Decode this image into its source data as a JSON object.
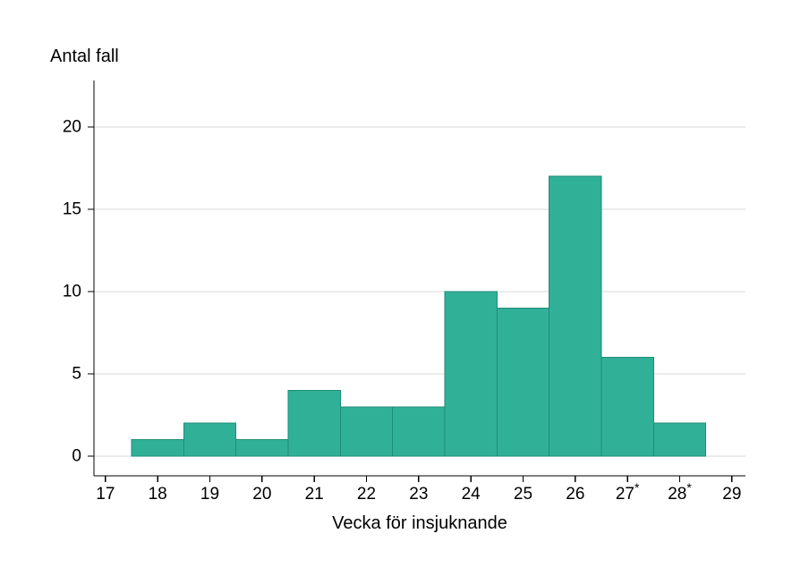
{
  "page": {
    "background": "#ffffff"
  },
  "chart_data": {
    "type": "bar",
    "title": "Antal fall",
    "xlabel": "Vecka för insjuknande",
    "ylabel": "Antal fall",
    "categories": [
      18,
      19,
      20,
      21,
      22,
      23,
      24,
      25,
      26,
      27,
      28
    ],
    "values": [
      1,
      2,
      1,
      4,
      3,
      3,
      10,
      9,
      17,
      6,
      2
    ],
    "bar_half_width": 0.5,
    "x_ticks": [
      {
        "v": 17,
        "label": "17",
        "sup": ""
      },
      {
        "v": 18,
        "label": "18",
        "sup": ""
      },
      {
        "v": 19,
        "label": "19",
        "sup": ""
      },
      {
        "v": 20,
        "label": "20",
        "sup": ""
      },
      {
        "v": 21,
        "label": "21",
        "sup": ""
      },
      {
        "v": 22,
        "label": "22",
        "sup": ""
      },
      {
        "v": 23,
        "label": "23",
        "sup": ""
      },
      {
        "v": 24,
        "label": "24",
        "sup": ""
      },
      {
        "v": 25,
        "label": "25",
        "sup": ""
      },
      {
        "v": 26,
        "label": "26",
        "sup": ""
      },
      {
        "v": 27,
        "label": "27",
        "sup": "*"
      },
      {
        "v": 28,
        "label": "28",
        "sup": "*"
      },
      {
        "v": 29,
        "label": "29",
        "sup": ""
      }
    ],
    "y_ticks": [
      0,
      5,
      10,
      15,
      20
    ],
    "xlim": [
      16.78,
      29.26
    ],
    "ylim": [
      0,
      20
    ],
    "grid": "horizontal",
    "legend": "none",
    "colors": {
      "bar_fill": "#31b098",
      "bar_stroke": "#1d8d77",
      "grid": "#d9d9d9",
      "axis": "#000000",
      "text": "#000000"
    }
  }
}
